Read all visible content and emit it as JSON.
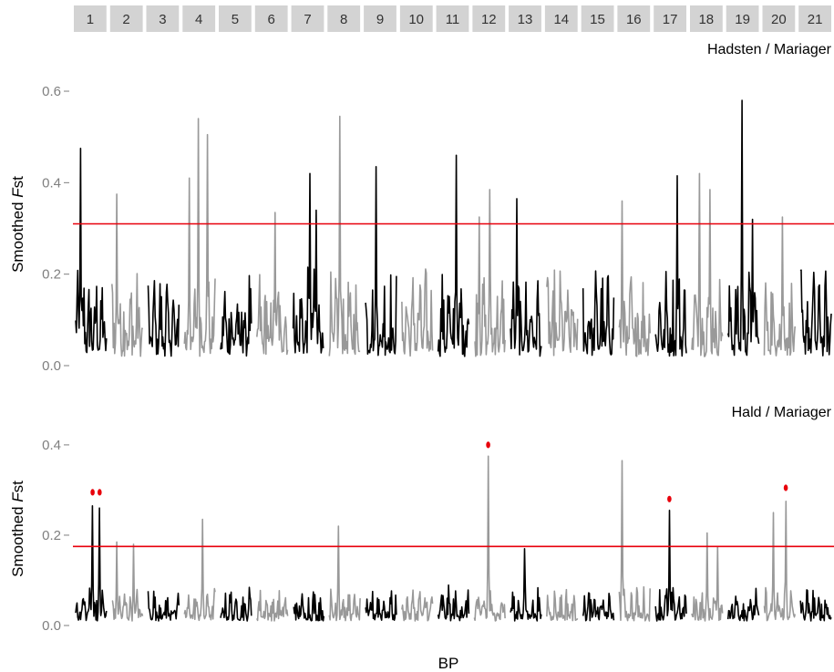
{
  "chart_data": {
    "type": "line",
    "xlabel": "BP",
    "chromosomes": [
      "1",
      "2",
      "3",
      "4",
      "5",
      "6",
      "7",
      "8",
      "9",
      "10",
      "11",
      "12",
      "13",
      "14",
      "15",
      "16",
      "17",
      "18",
      "19",
      "20",
      "21"
    ],
    "colors": {
      "odd": "#000000",
      "even": "#999999",
      "threshold": "#e8000b",
      "outlier": "#e8000b"
    },
    "panels": [
      {
        "title": "Hadsten / Mariager",
        "ylabel_prefix": "Smoothed ",
        "ylabel_italic": "F",
        "ylabel_suffix": "st",
        "ylim": [
          0,
          0.62
        ],
        "yticks": [
          0.0,
          0.2,
          0.4,
          0.6
        ],
        "ytick_labels": [
          "0.0",
          "0.2",
          "0.4",
          "0.6"
        ],
        "threshold": 0.31,
        "peaks": [
          {
            "chrom": 1,
            "pos": 0.15,
            "value": 0.475
          },
          {
            "chrom": 2,
            "pos": 0.15,
            "value": 0.375
          },
          {
            "chrom": 4,
            "pos": 0.15,
            "value": 0.41
          },
          {
            "chrom": 4,
            "pos": 0.45,
            "value": 0.54
          },
          {
            "chrom": 4,
            "pos": 0.75,
            "value": 0.505
          },
          {
            "chrom": 6,
            "pos": 0.6,
            "value": 0.335
          },
          {
            "chrom": 7,
            "pos": 0.55,
            "value": 0.42
          },
          {
            "chrom": 7,
            "pos": 0.75,
            "value": 0.34
          },
          {
            "chrom": 8,
            "pos": 0.35,
            "value": 0.545
          },
          {
            "chrom": 9,
            "pos": 0.35,
            "value": 0.435
          },
          {
            "chrom": 11,
            "pos": 0.6,
            "value": 0.46
          },
          {
            "chrom": 12,
            "pos": 0.15,
            "value": 0.325
          },
          {
            "chrom": 12,
            "pos": 0.5,
            "value": 0.385
          },
          {
            "chrom": 13,
            "pos": 0.2,
            "value": 0.365
          },
          {
            "chrom": 16,
            "pos": 0.1,
            "value": 0.36
          },
          {
            "chrom": 17,
            "pos": 0.7,
            "value": 0.415
          },
          {
            "chrom": 18,
            "pos": 0.25,
            "value": 0.42
          },
          {
            "chrom": 18,
            "pos": 0.6,
            "value": 0.385
          },
          {
            "chrom": 19,
            "pos": 0.45,
            "value": 0.58
          },
          {
            "chrom": 19,
            "pos": 0.8,
            "value": 0.32
          },
          {
            "chrom": 20,
            "pos": 0.6,
            "value": 0.325
          }
        ],
        "outliers": []
      },
      {
        "title": "Hald / Mariager",
        "ylabel_prefix": "Smoothed ",
        "ylabel_italic": "F",
        "ylabel_suffix": "st",
        "ylim": [
          0,
          0.42
        ],
        "yticks": [
          0.0,
          0.2,
          0.4
        ],
        "ytick_labels": [
          "0.0",
          "0.2",
          "0.4"
        ],
        "threshold": 0.175,
        "peaks": [
          {
            "chrom": 1,
            "pos": 0.55,
            "value": 0.265
          },
          {
            "chrom": 1,
            "pos": 0.78,
            "value": 0.26
          },
          {
            "chrom": 2,
            "pos": 0.15,
            "value": 0.185
          },
          {
            "chrom": 2,
            "pos": 0.7,
            "value": 0.18
          },
          {
            "chrom": 4,
            "pos": 0.6,
            "value": 0.235
          },
          {
            "chrom": 8,
            "pos": 0.3,
            "value": 0.22
          },
          {
            "chrom": 12,
            "pos": 0.45,
            "value": 0.375
          },
          {
            "chrom": 13,
            "pos": 0.45,
            "value": 0.17
          },
          {
            "chrom": 16,
            "pos": 0.1,
            "value": 0.365
          },
          {
            "chrom": 17,
            "pos": 0.45,
            "value": 0.255
          },
          {
            "chrom": 18,
            "pos": 0.5,
            "value": 0.205
          },
          {
            "chrom": 18,
            "pos": 0.85,
            "value": 0.175
          },
          {
            "chrom": 20,
            "pos": 0.3,
            "value": 0.25
          },
          {
            "chrom": 20,
            "pos": 0.7,
            "value": 0.275
          }
        ],
        "outliers": [
          {
            "chrom": 1,
            "pos": 0.55,
            "value": 0.295
          },
          {
            "chrom": 1,
            "pos": 0.78,
            "value": 0.295
          },
          {
            "chrom": 12,
            "pos": 0.45,
            "value": 0.4
          },
          {
            "chrom": 17,
            "pos": 0.45,
            "value": 0.28
          },
          {
            "chrom": 20,
            "pos": 0.7,
            "value": 0.305
          }
        ]
      }
    ]
  }
}
